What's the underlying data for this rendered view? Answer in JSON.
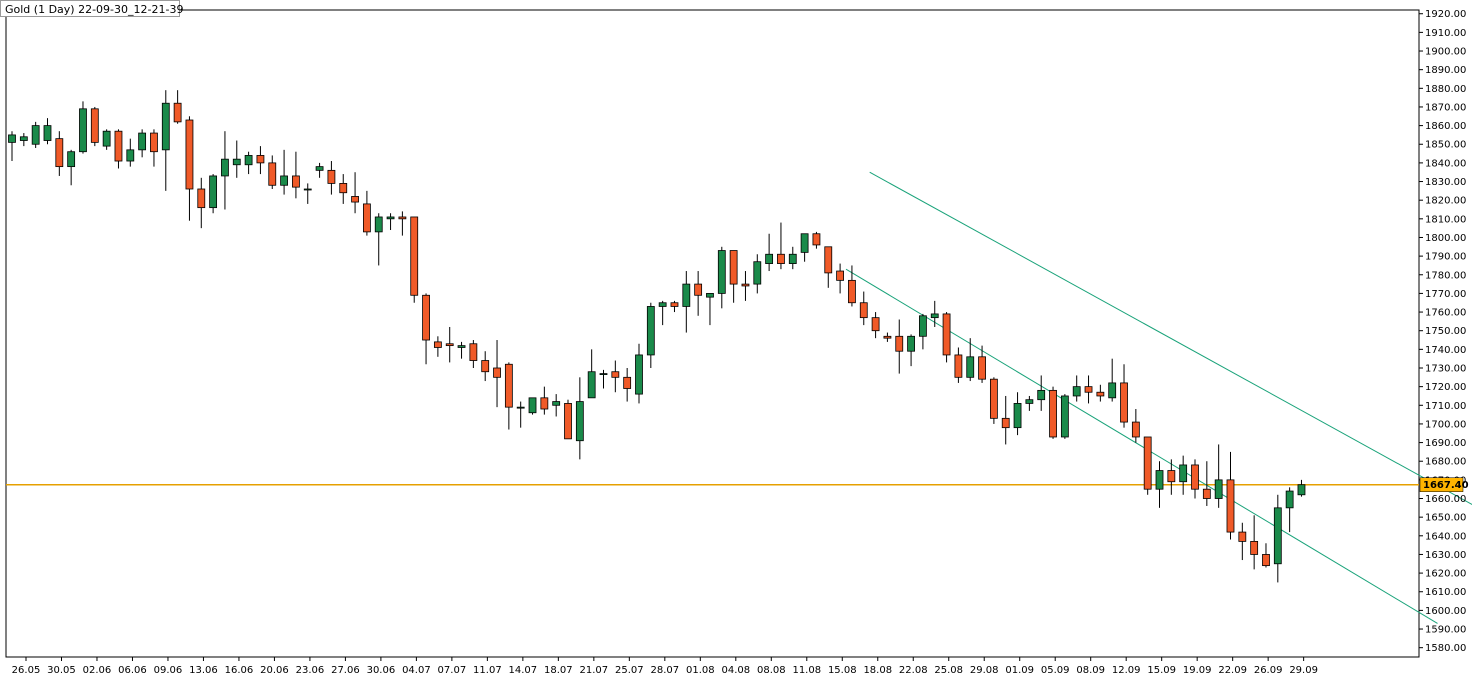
{
  "window": {
    "title": "Gold (1 Day) 22-09-30_12-21-39"
  },
  "chart_data": {
    "type": "candlestick",
    "symbol": "Gold",
    "timeframe": "1 Day",
    "title": "Gold (1 Day) 22-09-30_12-21-39",
    "ylim": [
      1575,
      1922
    ],
    "y_ticks": [
      1580,
      1590,
      1600,
      1610,
      1620,
      1630,
      1640,
      1650,
      1660,
      1670,
      1680,
      1690,
      1700,
      1710,
      1720,
      1730,
      1740,
      1750,
      1760,
      1770,
      1780,
      1790,
      1800,
      1810,
      1820,
      1830,
      1840,
      1850,
      1860,
      1870,
      1880,
      1890,
      1900,
      1910,
      1920
    ],
    "x_labels": [
      "26.05",
      "30.05",
      "02.06",
      "06.06",
      "09.06",
      "13.06",
      "16.06",
      "20.06",
      "23.06",
      "27.06",
      "30.06",
      "04.07",
      "07.07",
      "11.07",
      "14.07",
      "18.07",
      "21.07",
      "25.07",
      "28.07",
      "01.08",
      "04.08",
      "08.08",
      "11.08",
      "15.08",
      "18.08",
      "22.08",
      "25.08",
      "29.08",
      "01.09",
      "05.09",
      "08.09",
      "12.09",
      "15.09",
      "19.09",
      "22.09",
      "26.09",
      "29.09"
    ],
    "last_price": "1667.40",
    "colors": {
      "bull": "#1a8a4a",
      "bear": "#f05a28",
      "wick": "#000000",
      "price_line": "#e6a000",
      "channel": "#1aa37a",
      "price_box": "#ffb400"
    },
    "candles": [
      {
        "o": 1851,
        "h": 1857,
        "l": 1841,
        "c": 1855
      },
      {
        "o": 1852,
        "h": 1856,
        "l": 1849,
        "c": 1854
      },
      {
        "o": 1850,
        "h": 1862,
        "l": 1848,
        "c": 1860
      },
      {
        "o": 1852,
        "h": 1864,
        "l": 1850,
        "c": 1860
      },
      {
        "o": 1853,
        "h": 1857,
        "l": 1833,
        "c": 1838
      },
      {
        "o": 1838,
        "h": 1847,
        "l": 1828,
        "c": 1846
      },
      {
        "o": 1846,
        "h": 1873,
        "l": 1845,
        "c": 1869
      },
      {
        "o": 1869,
        "h": 1870,
        "l": 1849,
        "c": 1851
      },
      {
        "o": 1849,
        "h": 1858,
        "l": 1847,
        "c": 1857
      },
      {
        "o": 1857,
        "h": 1858,
        "l": 1837,
        "c": 1841
      },
      {
        "o": 1841,
        "h": 1853,
        "l": 1838,
        "c": 1847
      },
      {
        "o": 1847,
        "h": 1858,
        "l": 1843,
        "c": 1856
      },
      {
        "o": 1856,
        "h": 1858,
        "l": 1838,
        "c": 1846
      },
      {
        "o": 1847,
        "h": 1879,
        "l": 1825,
        "c": 1872
      },
      {
        "o": 1872,
        "h": 1879,
        "l": 1861,
        "c": 1862
      },
      {
        "o": 1863,
        "h": 1865,
        "l": 1809,
        "c": 1826
      },
      {
        "o": 1826,
        "h": 1832,
        "l": 1805,
        "c": 1816
      },
      {
        "o": 1816,
        "h": 1834,
        "l": 1813,
        "c": 1833
      },
      {
        "o": 1833,
        "h": 1857,
        "l": 1815,
        "c": 1842
      },
      {
        "o": 1839,
        "h": 1852,
        "l": 1832,
        "c": 1842
      },
      {
        "o": 1839,
        "h": 1846,
        "l": 1834,
        "c": 1844
      },
      {
        "o": 1844,
        "h": 1849,
        "l": 1834,
        "c": 1840
      },
      {
        "o": 1840,
        "h": 1844,
        "l": 1826,
        "c": 1828
      },
      {
        "o": 1828,
        "h": 1847,
        "l": 1823,
        "c": 1833
      },
      {
        "o": 1833,
        "h": 1846,
        "l": 1821,
        "c": 1827
      },
      {
        "o": 1826,
        "h": 1829,
        "l": 1818,
        "c": 1826
      },
      {
        "o": 1836,
        "h": 1840,
        "l": 1832,
        "c": 1838
      },
      {
        "o": 1836,
        "h": 1841,
        "l": 1823,
        "c": 1829
      },
      {
        "o": 1829,
        "h": 1834,
        "l": 1818,
        "c": 1824
      },
      {
        "o": 1822,
        "h": 1835,
        "l": 1813,
        "c": 1819
      },
      {
        "o": 1818,
        "h": 1825,
        "l": 1801,
        "c": 1803
      },
      {
        "o": 1803,
        "h": 1813,
        "l": 1785,
        "c": 1811
      },
      {
        "o": 1810,
        "h": 1813,
        "l": 1804,
        "c": 1811
      },
      {
        "o": 1811,
        "h": 1814,
        "l": 1801,
        "c": 1810
      },
      {
        "o": 1811,
        "h": 1811,
        "l": 1765,
        "c": 1769
      },
      {
        "o": 1769,
        "h": 1770,
        "l": 1732,
        "c": 1745
      },
      {
        "o": 1744,
        "h": 1747,
        "l": 1736,
        "c": 1741
      },
      {
        "o": 1743,
        "h": 1752,
        "l": 1733,
        "c": 1742
      },
      {
        "o": 1741,
        "h": 1744,
        "l": 1735,
        "c": 1742
      },
      {
        "o": 1743,
        "h": 1745,
        "l": 1730,
        "c": 1734
      },
      {
        "o": 1734,
        "h": 1739,
        "l": 1723,
        "c": 1728
      },
      {
        "o": 1730,
        "h": 1745,
        "l": 1709,
        "c": 1725
      },
      {
        "o": 1732,
        "h": 1733,
        "l": 1697,
        "c": 1709
      },
      {
        "o": 1709,
        "h": 1712,
        "l": 1698,
        "c": 1709
      },
      {
        "o": 1706,
        "h": 1714,
        "l": 1705,
        "c": 1714
      },
      {
        "o": 1714,
        "h": 1720,
        "l": 1705,
        "c": 1708
      },
      {
        "o": 1710,
        "h": 1716,
        "l": 1704,
        "c": 1712
      },
      {
        "o": 1711,
        "h": 1713,
        "l": 1692,
        "c": 1692
      },
      {
        "o": 1691,
        "h": 1725,
        "l": 1681,
        "c": 1712
      },
      {
        "o": 1714,
        "h": 1740,
        "l": 1714,
        "c": 1728
      },
      {
        "o": 1727,
        "h": 1729,
        "l": 1719,
        "c": 1727
      },
      {
        "o": 1728,
        "h": 1734,
        "l": 1717,
        "c": 1725
      },
      {
        "o": 1725,
        "h": 1730,
        "l": 1712,
        "c": 1719
      },
      {
        "o": 1716,
        "h": 1743,
        "l": 1711,
        "c": 1737
      },
      {
        "o": 1737,
        "h": 1765,
        "l": 1730,
        "c": 1763
      },
      {
        "o": 1763,
        "h": 1766,
        "l": 1753,
        "c": 1765
      },
      {
        "o": 1765,
        "h": 1766,
        "l": 1760,
        "c": 1763
      },
      {
        "o": 1763,
        "h": 1782,
        "l": 1749,
        "c": 1775
      },
      {
        "o": 1775,
        "h": 1782,
        "l": 1758,
        "c": 1769
      },
      {
        "o": 1768,
        "h": 1770,
        "l": 1753,
        "c": 1770
      },
      {
        "o": 1770,
        "h": 1795,
        "l": 1762,
        "c": 1793
      },
      {
        "o": 1793,
        "h": 1793,
        "l": 1765,
        "c": 1775
      },
      {
        "o": 1775,
        "h": 1782,
        "l": 1766,
        "c": 1774
      },
      {
        "o": 1775,
        "h": 1791,
        "l": 1770,
        "c": 1787
      },
      {
        "o": 1786,
        "h": 1802,
        "l": 1782,
        "c": 1791
      },
      {
        "o": 1791,
        "h": 1808,
        "l": 1783,
        "c": 1786
      },
      {
        "o": 1786,
        "h": 1795,
        "l": 1783,
        "c": 1791
      },
      {
        "o": 1792,
        "h": 1802,
        "l": 1787,
        "c": 1802
      },
      {
        "o": 1802,
        "h": 1803,
        "l": 1794,
        "c": 1796
      },
      {
        "o": 1795,
        "h": 1795,
        "l": 1773,
        "c": 1781
      },
      {
        "o": 1782,
        "h": 1786,
        "l": 1770,
        "c": 1777
      },
      {
        "o": 1777,
        "h": 1785,
        "l": 1763,
        "c": 1765
      },
      {
        "o": 1765,
        "h": 1771,
        "l": 1753,
        "c": 1757
      },
      {
        "o": 1757,
        "h": 1760,
        "l": 1746,
        "c": 1750
      },
      {
        "o": 1747,
        "h": 1749,
        "l": 1744,
        "c": 1746
      },
      {
        "o": 1747,
        "h": 1756,
        "l": 1727,
        "c": 1739
      },
      {
        "o": 1739,
        "h": 1748,
        "l": 1731,
        "c": 1747
      },
      {
        "o": 1747,
        "h": 1759,
        "l": 1740,
        "c": 1758
      },
      {
        "o": 1757,
        "h": 1766,
        "l": 1752,
        "c": 1759
      },
      {
        "o": 1759,
        "h": 1760,
        "l": 1733,
        "c": 1737
      },
      {
        "o": 1737,
        "h": 1741,
        "l": 1722,
        "c": 1725
      },
      {
        "o": 1725,
        "h": 1746,
        "l": 1723,
        "c": 1736
      },
      {
        "o": 1736,
        "h": 1742,
        "l": 1722,
        "c": 1724
      },
      {
        "o": 1724,
        "h": 1725,
        "l": 1700,
        "c": 1703
      },
      {
        "o": 1703,
        "h": 1715,
        "l": 1689,
        "c": 1698
      },
      {
        "o": 1698,
        "h": 1717,
        "l": 1694,
        "c": 1711
      },
      {
        "o": 1711,
        "h": 1715,
        "l": 1707,
        "c": 1713
      },
      {
        "o": 1713,
        "h": 1726,
        "l": 1707,
        "c": 1718
      },
      {
        "o": 1718,
        "h": 1720,
        "l": 1692,
        "c": 1693
      },
      {
        "o": 1693,
        "h": 1716,
        "l": 1692,
        "c": 1715
      },
      {
        "o": 1715,
        "h": 1726,
        "l": 1712,
        "c": 1720
      },
      {
        "o": 1720,
        "h": 1726,
        "l": 1711,
        "c": 1717
      },
      {
        "o": 1717,
        "h": 1721,
        "l": 1712,
        "c": 1715
      },
      {
        "o": 1714,
        "h": 1735,
        "l": 1712,
        "c": 1722
      },
      {
        "o": 1722,
        "h": 1732,
        "l": 1698,
        "c": 1701
      },
      {
        "o": 1701,
        "h": 1708,
        "l": 1690,
        "c": 1693
      },
      {
        "o": 1693,
        "h": 1693,
        "l": 1662,
        "c": 1665
      },
      {
        "o": 1665,
        "h": 1680,
        "l": 1655,
        "c": 1675
      },
      {
        "o": 1675,
        "h": 1681,
        "l": 1662,
        "c": 1669
      },
      {
        "o": 1669,
        "h": 1683,
        "l": 1662,
        "c": 1678
      },
      {
        "o": 1678,
        "h": 1681,
        "l": 1660,
        "c": 1665
      },
      {
        "o": 1665,
        "h": 1680,
        "l": 1656,
        "c": 1660
      },
      {
        "o": 1660,
        "h": 1689,
        "l": 1655,
        "c": 1670
      },
      {
        "o": 1670,
        "h": 1685,
        "l": 1638,
        "c": 1642
      },
      {
        "o": 1642,
        "h": 1647,
        "l": 1627,
        "c": 1637
      },
      {
        "o": 1637,
        "h": 1651,
        "l": 1622,
        "c": 1630
      },
      {
        "o": 1630,
        "h": 1636,
        "l": 1623,
        "c": 1624
      },
      {
        "o": 1625,
        "h": 1662,
        "l": 1615,
        "c": 1655
      },
      {
        "o": 1655,
        "h": 1666,
        "l": 1642,
        "c": 1664
      },
      {
        "o": 1662,
        "h": 1670,
        "l": 1661,
        "c": 1667.4
      }
    ],
    "channel_lines": [
      {
        "x1_index": 72.5,
        "y1": 1835,
        "x2_index": 130.5,
        "y2": 1632
      },
      {
        "x1_index": 70.5,
        "y1": 1783,
        "x2_index": 120.5,
        "y2": 1593
      }
    ]
  }
}
